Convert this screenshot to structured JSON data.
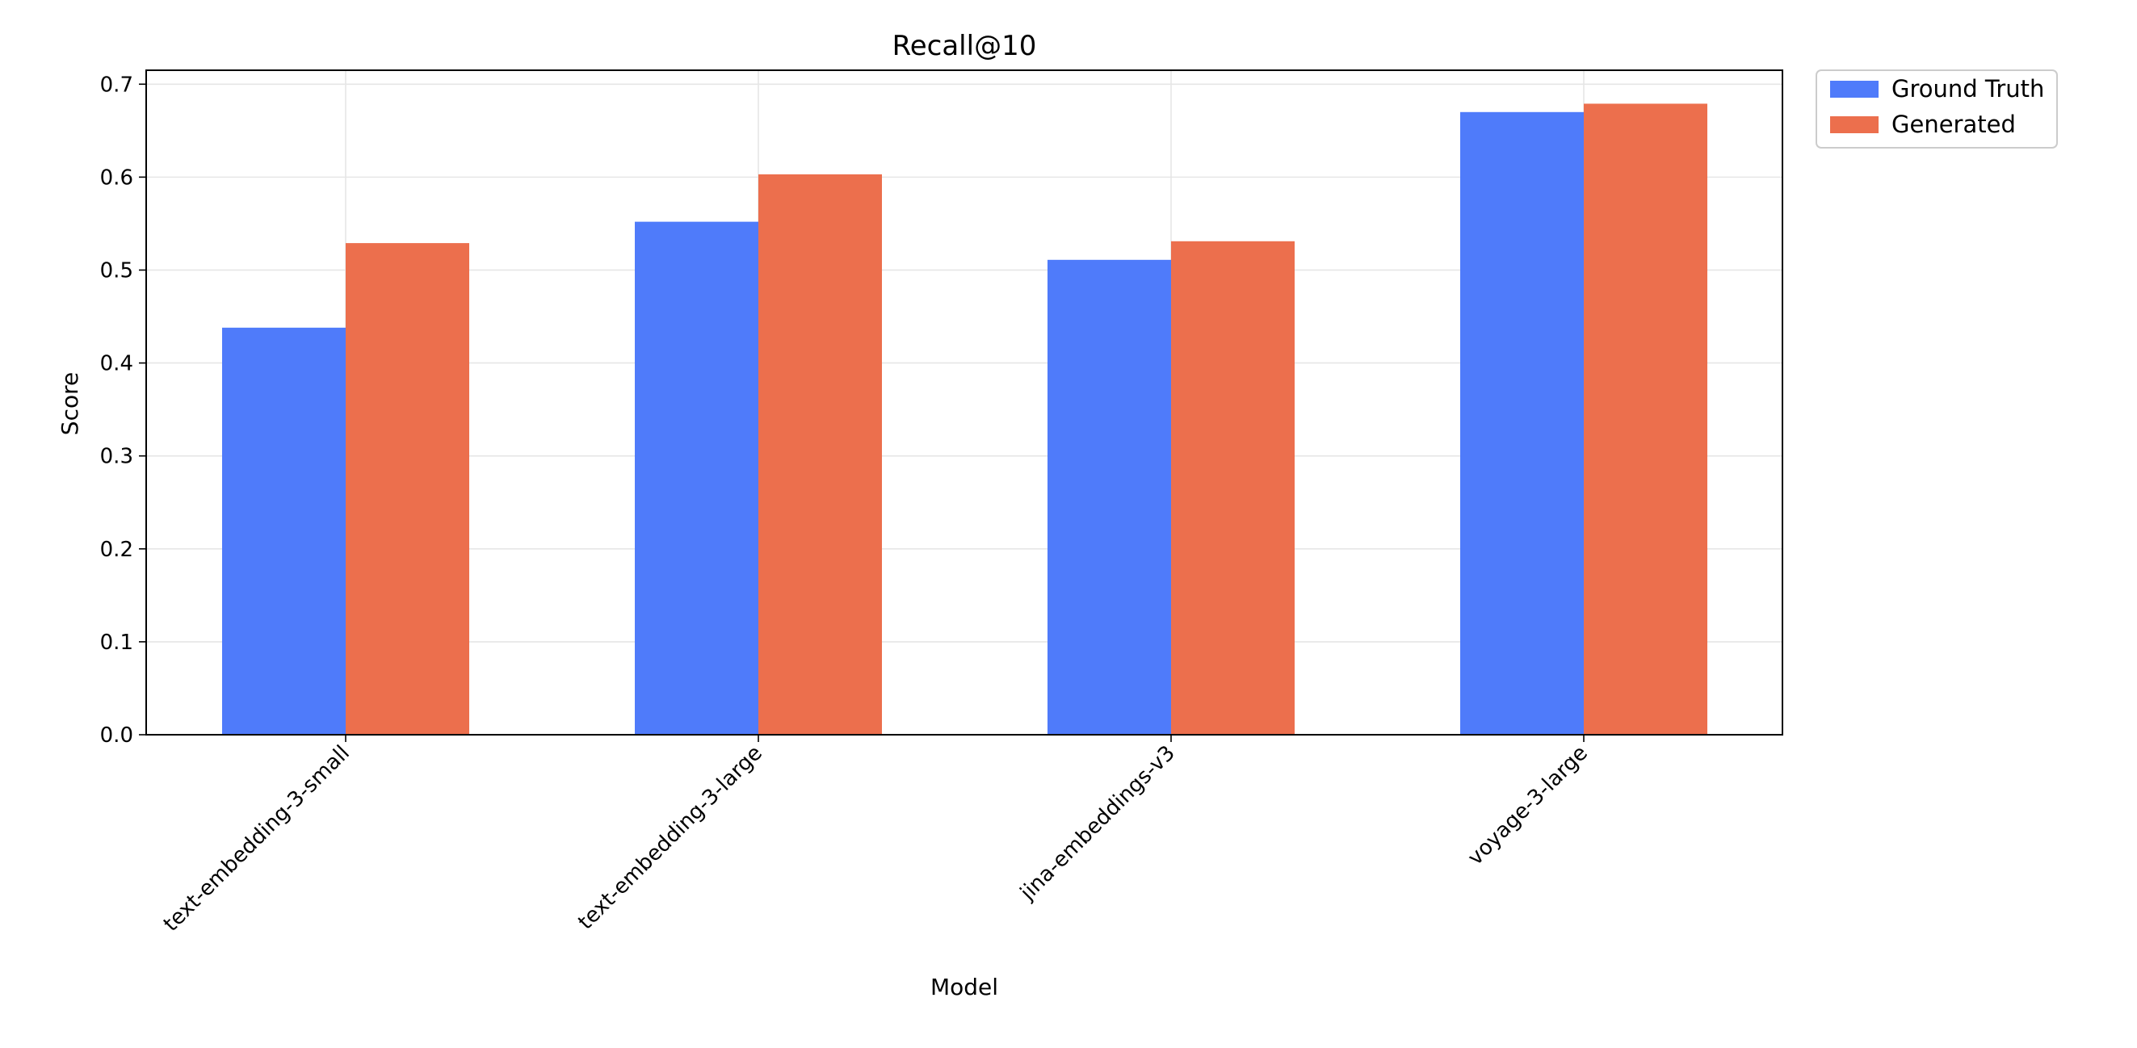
{
  "chart_data": {
    "type": "bar",
    "title": "Recall@10",
    "xlabel": "Model",
    "ylabel": "Score",
    "categories": [
      "text-embedding-3-small",
      "text-embedding-3-large",
      "jina-embeddings-v3",
      "voyage-3-large"
    ],
    "series": [
      {
        "name": "Ground Truth",
        "color": "#4f7bfa",
        "values": [
          0.438,
          0.552,
          0.511,
          0.67
        ]
      },
      {
        "name": "Generated",
        "color": "#ec6f4d",
        "values": [
          0.529,
          0.603,
          0.531,
          0.679
        ]
      }
    ],
    "ylim": [
      0,
      0.715
    ],
    "yticks": [
      "0.0",
      "0.1",
      "0.2",
      "0.3",
      "0.4",
      "0.5",
      "0.6",
      "0.7"
    ],
    "grid": true,
    "legend_position": "outside-top-right"
  }
}
